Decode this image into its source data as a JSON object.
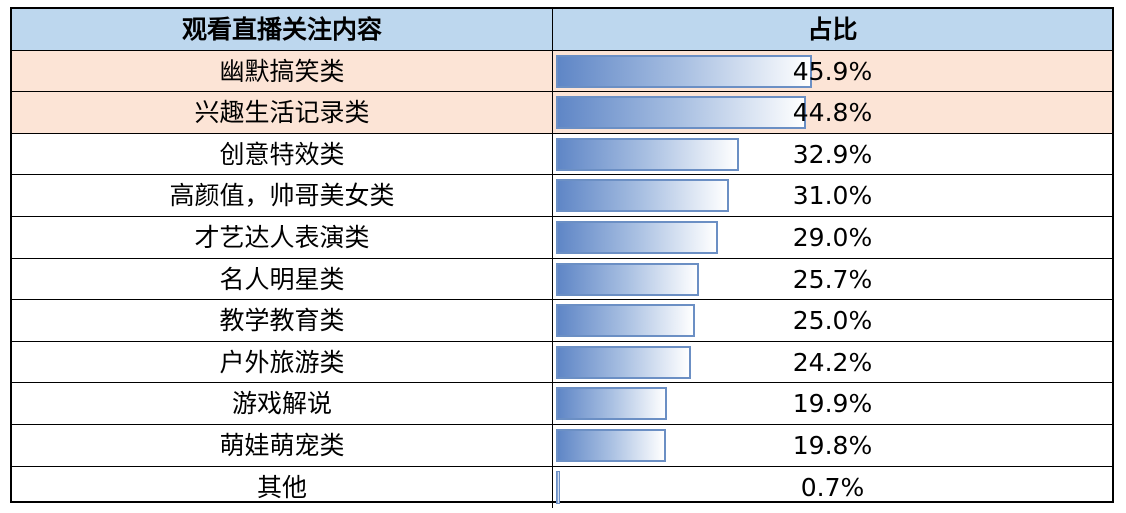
{
  "table": {
    "header_category": "观看直播关注内容",
    "header_value": "占比"
  },
  "colors": {
    "header_bg": "#bdd7ee",
    "highlight_bg": "#fce4d6",
    "bar_start": "#5f86c6",
    "bar_end": "#ffffff",
    "bar_border": "#6b8fc4"
  },
  "chart_data": {
    "type": "table",
    "value_unit": "%",
    "bar_max": 45.9,
    "highlighted_rows": [
      0,
      1
    ],
    "rows": [
      {
        "category": "幽默搞笑类",
        "value": 45.9,
        "label": "45.9%"
      },
      {
        "category": "兴趣生活记录类",
        "value": 44.8,
        "label": "44.8%"
      },
      {
        "category": "创意特效类",
        "value": 32.9,
        "label": "32.9%"
      },
      {
        "category": "高颜值，帅哥美女类",
        "value": 31.0,
        "label": "31.0%"
      },
      {
        "category": "才艺达人表演类",
        "value": 29.0,
        "label": "29.0%"
      },
      {
        "category": "名人明星类",
        "value": 25.7,
        "label": "25.7%"
      },
      {
        "category": "教学教育类",
        "value": 25.0,
        "label": "25.0%"
      },
      {
        "category": "户外旅游类",
        "value": 24.2,
        "label": "24.2%"
      },
      {
        "category": "游戏解说",
        "value": 19.9,
        "label": "19.9%"
      },
      {
        "category": "萌娃萌宠类",
        "value": 19.8,
        "label": "19.8%"
      },
      {
        "category": "其他",
        "value": 0.7,
        "label": "0.7%"
      }
    ]
  }
}
